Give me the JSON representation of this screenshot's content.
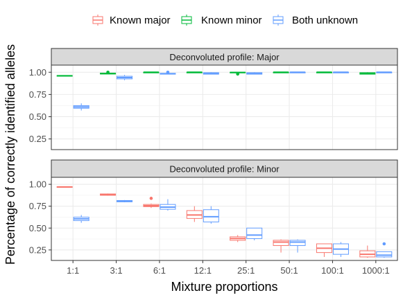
{
  "chart_data": {
    "type": "boxplot",
    "xlabel": "Mixture proportions",
    "ylabel": "Percentage of correctly identified alleles",
    "categories": [
      "1:1",
      "3:1",
      "6:1",
      "12:1",
      "25:1",
      "50:1",
      "100:1",
      "1000:1"
    ],
    "yticks": [
      "0.25",
      "0.50",
      "0.75",
      "1.00"
    ],
    "ylim": [
      0.13,
      1.08
    ],
    "grid": true,
    "legend_position": "top",
    "series": [
      {
        "name": "Known major",
        "color": "#F8766D"
      },
      {
        "name": "Known minor",
        "color": "#00BA38"
      },
      {
        "name": "Both unknown",
        "color": "#619CFF"
      }
    ],
    "panels": [
      {
        "title": "Deconvoluted profile: Major",
        "boxes": [
          {
            "category": "1:1",
            "series": "Known minor",
            "min": 0.955,
            "q1": 0.955,
            "median": 0.96,
            "q3": 0.963,
            "max": 0.965,
            "outliers": []
          },
          {
            "category": "1:1",
            "series": "Both unknown",
            "min": 0.57,
            "q1": 0.595,
            "median": 0.61,
            "q3": 0.625,
            "max": 0.65,
            "outliers": []
          },
          {
            "category": "3:1",
            "series": "Known minor",
            "min": 0.98,
            "q1": 0.98,
            "median": 0.985,
            "q3": 0.99,
            "max": 0.99,
            "outliers": [
              1.0
            ]
          },
          {
            "category": "3:1",
            "series": "Both unknown",
            "min": 0.91,
            "q1": 0.925,
            "median": 0.94,
            "q3": 0.955,
            "max": 0.97,
            "outliers": []
          },
          {
            "category": "6:1",
            "series": "Known minor",
            "min": 0.995,
            "q1": 0.997,
            "median": 1.0,
            "q3": 1.0,
            "max": 1.0,
            "outliers": []
          },
          {
            "category": "6:1",
            "series": "Both unknown",
            "min": 0.975,
            "q1": 0.978,
            "median": 0.983,
            "q3": 0.988,
            "max": 0.99,
            "outliers": [
              1.0
            ]
          },
          {
            "category": "12:1",
            "series": "Known minor",
            "min": 0.998,
            "q1": 0.999,
            "median": 1.0,
            "q3": 1.0,
            "max": 1.0,
            "outliers": []
          },
          {
            "category": "12:1",
            "series": "Both unknown",
            "min": 0.975,
            "q1": 0.978,
            "median": 0.985,
            "q3": 0.995,
            "max": 1.0,
            "outliers": []
          },
          {
            "category": "25:1",
            "series": "Known minor",
            "min": 0.99,
            "q1": 0.993,
            "median": 0.997,
            "q3": 1.0,
            "max": 1.0,
            "outliers": [
              0.98
            ]
          },
          {
            "category": "25:1",
            "series": "Both unknown",
            "min": 0.975,
            "q1": 0.978,
            "median": 0.985,
            "q3": 0.995,
            "max": 1.0,
            "outliers": []
          },
          {
            "category": "50:1",
            "series": "Known minor",
            "min": 0.998,
            "q1": 0.999,
            "median": 1.0,
            "q3": 1.0,
            "max": 1.0,
            "outliers": []
          },
          {
            "category": "50:1",
            "series": "Both unknown",
            "min": 0.995,
            "q1": 0.997,
            "median": 1.0,
            "q3": 1.0,
            "max": 1.0,
            "outliers": []
          },
          {
            "category": "100:1",
            "series": "Known minor",
            "min": 0.998,
            "q1": 0.999,
            "median": 1.0,
            "q3": 1.0,
            "max": 1.0,
            "outliers": []
          },
          {
            "category": "100:1",
            "series": "Both unknown",
            "min": 0.995,
            "q1": 0.997,
            "median": 1.0,
            "q3": 1.0,
            "max": 1.0,
            "outliers": []
          },
          {
            "category": "1000:1",
            "series": "Known minor",
            "min": 0.975,
            "q1": 0.978,
            "median": 0.985,
            "q3": 0.995,
            "max": 1.0,
            "outliers": []
          },
          {
            "category": "1000:1",
            "series": "Both unknown",
            "min": 0.995,
            "q1": 0.997,
            "median": 1.0,
            "q3": 1.0,
            "max": 1.0,
            "outliers": []
          }
        ]
      },
      {
        "title": "Deconvoluted profile: Minor",
        "boxes": [
          {
            "category": "1:1",
            "series": "Known major",
            "min": 0.965,
            "q1": 0.967,
            "median": 0.97,
            "q3": 0.973,
            "max": 0.975,
            "outliers": []
          },
          {
            "category": "1:1",
            "series": "Both unknown",
            "min": 0.56,
            "q1": 0.585,
            "median": 0.605,
            "q3": 0.625,
            "max": 0.65,
            "outliers": []
          },
          {
            "category": "3:1",
            "series": "Known major",
            "min": 0.87,
            "q1": 0.875,
            "median": 0.88,
            "q3": 0.89,
            "max": 0.895,
            "outliers": []
          },
          {
            "category": "3:1",
            "series": "Both unknown",
            "min": 0.795,
            "q1": 0.8,
            "median": 0.81,
            "q3": 0.815,
            "max": 0.82,
            "outliers": []
          },
          {
            "category": "6:1",
            "series": "Known major",
            "min": 0.73,
            "q1": 0.745,
            "median": 0.755,
            "q3": 0.77,
            "max": 0.78,
            "outliers": [
              0.84
            ]
          },
          {
            "category": "6:1",
            "series": "Both unknown",
            "min": 0.7,
            "q1": 0.715,
            "median": 0.74,
            "q3": 0.77,
            "max": 0.83,
            "outliers": []
          },
          {
            "category": "12:1",
            "series": "Known major",
            "min": 0.57,
            "q1": 0.61,
            "median": 0.65,
            "q3": 0.7,
            "max": 0.75,
            "outliers": []
          },
          {
            "category": "12:1",
            "series": "Both unknown",
            "min": 0.55,
            "q1": 0.57,
            "median": 0.63,
            "q3": 0.71,
            "max": 0.75,
            "outliers": []
          },
          {
            "category": "25:1",
            "series": "Known major",
            "min": 0.34,
            "q1": 0.36,
            "median": 0.38,
            "q3": 0.4,
            "max": 0.42,
            "outliers": []
          },
          {
            "category": "25:1",
            "series": "Both unknown",
            "min": 0.36,
            "q1": 0.38,
            "median": 0.42,
            "q3": 0.5,
            "max": 0.5,
            "outliers": []
          },
          {
            "category": "50:1",
            "series": "Known major",
            "min": 0.22,
            "q1": 0.3,
            "median": 0.34,
            "q3": 0.36,
            "max": 0.37,
            "outliers": []
          },
          {
            "category": "50:1",
            "series": "Both unknown",
            "min": 0.22,
            "q1": 0.3,
            "median": 0.34,
            "q3": 0.36,
            "max": 0.37,
            "outliers": []
          },
          {
            "category": "100:1",
            "series": "Known major",
            "min": 0.17,
            "q1": 0.22,
            "median": 0.27,
            "q3": 0.32,
            "max": 0.32,
            "outliers": []
          },
          {
            "category": "100:1",
            "series": "Both unknown",
            "min": 0.17,
            "q1": 0.2,
            "median": 0.26,
            "q3": 0.32,
            "max": 0.34,
            "outliers": []
          },
          {
            "category": "1000:1",
            "series": "Known major",
            "min": 0.16,
            "q1": 0.17,
            "median": 0.2,
            "q3": 0.24,
            "max": 0.3,
            "outliers": []
          },
          {
            "category": "1000:1",
            "series": "Both unknown",
            "min": 0.16,
            "q1": 0.17,
            "median": 0.19,
            "q3": 0.23,
            "max": 0.23,
            "outliers": [
              0.32
            ]
          }
        ]
      }
    ]
  }
}
